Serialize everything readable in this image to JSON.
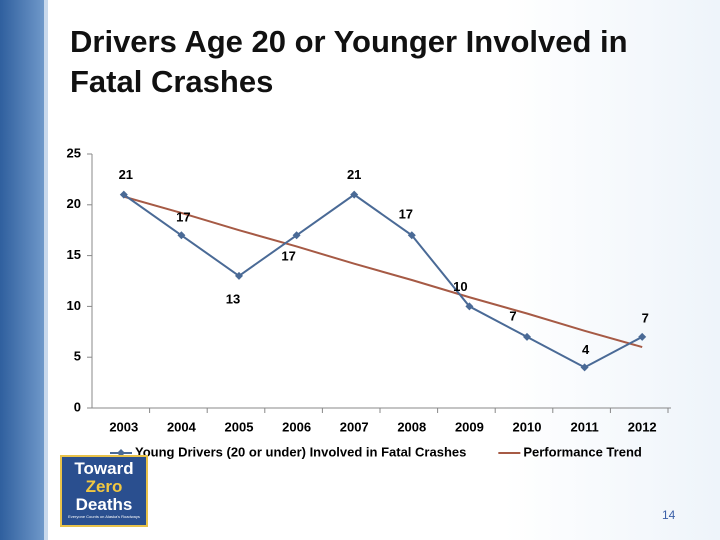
{
  "title": "Drivers Age 20 or Younger Involved in Fatal Crashes",
  "chart_data": {
    "type": "line",
    "categories": [
      "2003",
      "2004",
      "2005",
      "2006",
      "2007",
      "2008",
      "2009",
      "2010",
      "2011",
      "2012"
    ],
    "series": [
      {
        "name": "Young Drivers (20 or under) Involved in Fatal Crashes",
        "color": "#4a6a96",
        "values": [
          21,
          17,
          13,
          17,
          21,
          17,
          10,
          7,
          4,
          7
        ],
        "data_labels": true
      },
      {
        "name": "Performance Trend",
        "color": "#a65a45",
        "values": [
          20.8,
          19.2,
          17.5,
          15.9,
          14.2,
          12.6,
          10.9,
          9.3,
          7.6,
          6.0
        ]
      }
    ],
    "ylim": [
      0,
      25
    ],
    "yticks": [
      0,
      5,
      10,
      15,
      20,
      25
    ],
    "legend": "bottom"
  },
  "logo": {
    "line1": "Toward",
    "line2": "Zero",
    "line3": "Deaths",
    "tagline": "Everyone Counts on Alaska's Roadways"
  },
  "page_number": "14"
}
